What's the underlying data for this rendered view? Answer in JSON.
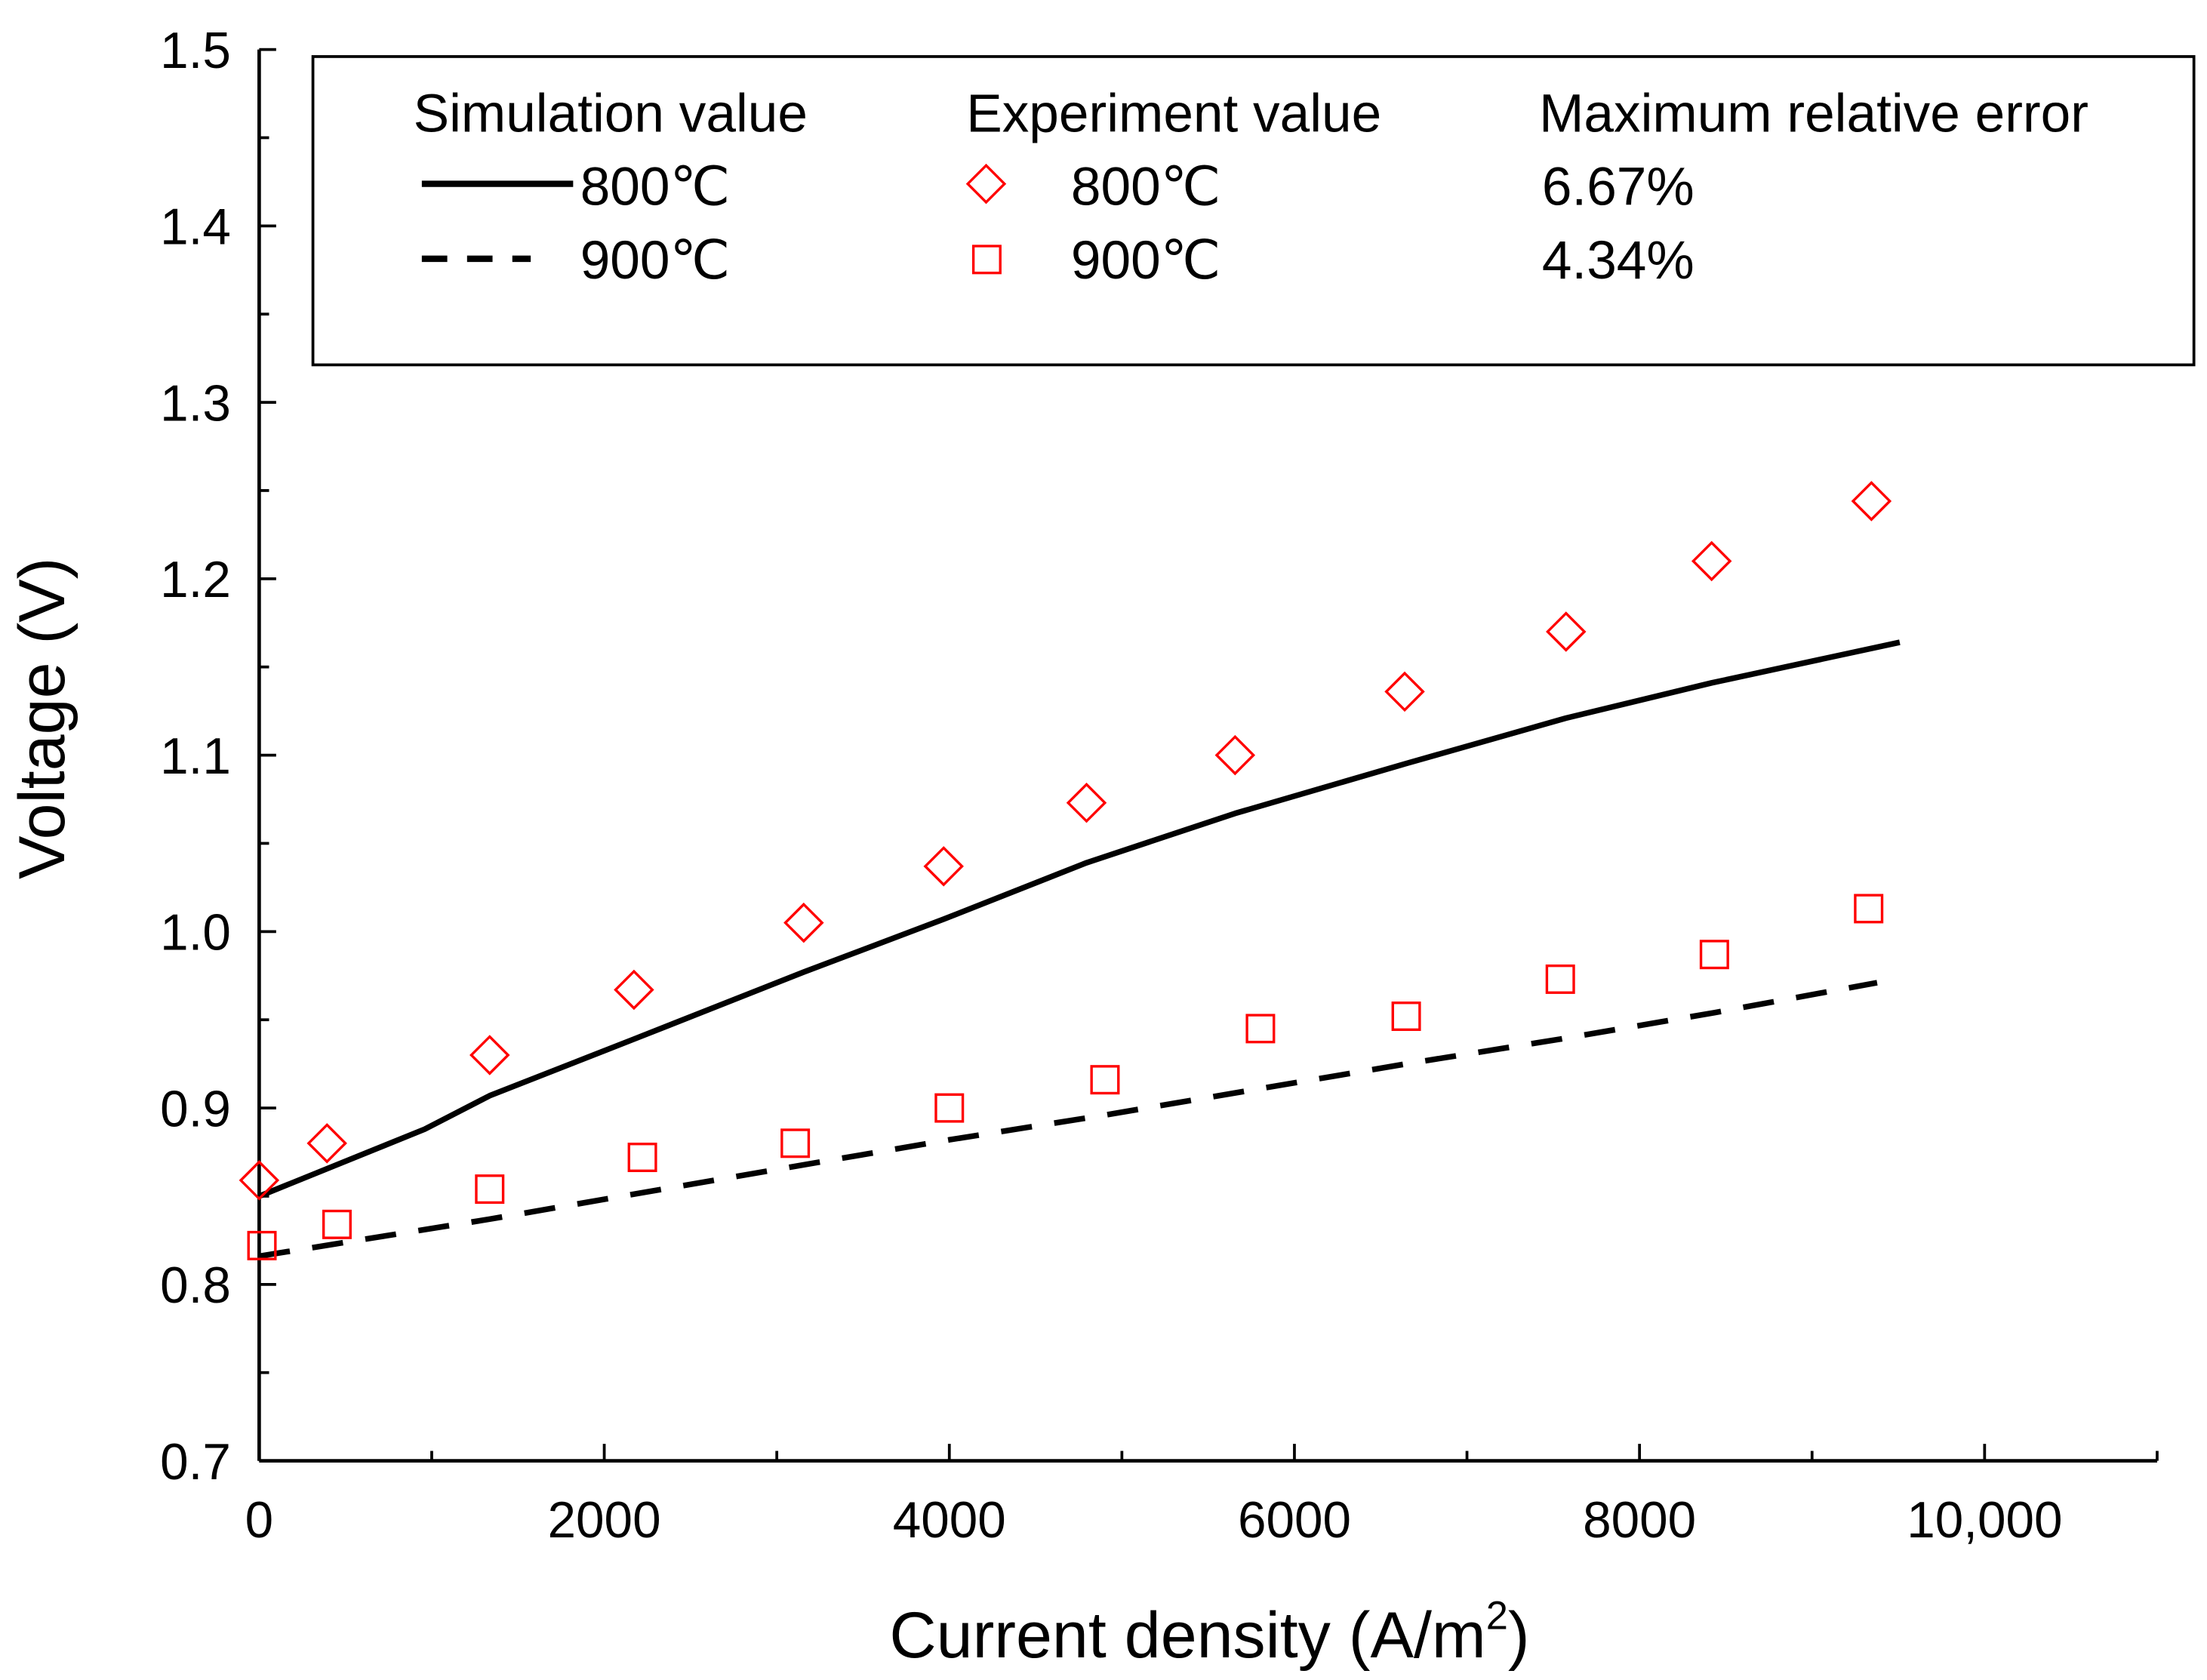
{
  "chart_data": {
    "type": "line",
    "title": "",
    "xlabel": "Current density (A/m",
    "xlabel_sup": "2",
    "xlabel_end": ")",
    "ylabel": "Voltage (V)",
    "xlim": [
      0,
      11000
    ],
    "ylim": [
      0.7,
      1.5
    ],
    "x_ticks": [
      0,
      2000,
      4000,
      6000,
      8000,
      10000
    ],
    "x_tick_labels": [
      "0",
      "2000",
      "4000",
      "6000",
      "8000",
      "10,000"
    ],
    "y_ticks": [
      0.7,
      0.8,
      0.9,
      1.0,
      1.1,
      1.2,
      1.3,
      1.4,
      1.5
    ],
    "y_tick_labels": [
      "0.7",
      "0.8",
      "0.9",
      "1.0",
      "1.1",
      "1.2",
      "1.3",
      "1.4",
      "1.5"
    ],
    "grid": false,
    "legend_placement": "top",
    "legend": {
      "col1_header": "Simulation value",
      "col2_header": "Experiment value",
      "col3_header": "Maximum relative error",
      "sim_800_label": "800℃",
      "sim_900_label": "900℃",
      "exp_800_label": "800℃",
      "exp_900_label": "900℃",
      "err_800": "6.67%",
      "err_900": "4.34%"
    },
    "series": [
      {
        "name": "Simulation 800℃",
        "kind": "line",
        "style": "solid",
        "color": "#000000",
        "x": [
          0,
          959,
          1336,
          2172,
          3156,
          3967,
          4795,
          5656,
          6639,
          7574,
          8418,
          9508
        ],
        "y": [
          0.85,
          0.888,
          0.907,
          0.939,
          0.977,
          1.007,
          1.039,
          1.067,
          1.095,
          1.121,
          1.141,
          1.164
        ]
      },
      {
        "name": "Simulation 900℃",
        "kind": "line",
        "style": "dashed",
        "color": "#000000",
        "x": [
          0,
          1336,
          3107,
          4000,
          4902,
          5803,
          6648,
          7541,
          8434,
          9377
        ],
        "y": [
          0.816,
          0.837,
          0.867,
          0.882,
          0.896,
          0.911,
          0.925,
          0.939,
          0.954,
          0.971
        ]
      },
      {
        "name": "Experiment 800℃",
        "kind": "scatter",
        "marker": "diamond",
        "color": "#ff0000",
        "x": [
          0,
          393,
          1336,
          2172,
          3156,
          3967,
          4795,
          5656,
          6639,
          7574,
          8418,
          9344
        ],
        "y": [
          0.859,
          0.88,
          0.93,
          0.967,
          1.005,
          1.037,
          1.073,
          1.1,
          1.136,
          1.17,
          1.21,
          1.244
        ]
      },
      {
        "name": "Experiment 900℃",
        "kind": "scatter",
        "marker": "square",
        "color": "#ff0000",
        "x": [
          16,
          451,
          1336,
          2221,
          3107,
          4000,
          4902,
          5803,
          6648,
          7541,
          8434,
          9328
        ],
        "y": [
          0.822,
          0.834,
          0.854,
          0.872,
          0.88,
          0.9,
          0.916,
          0.945,
          0.952,
          0.973,
          0.987,
          1.013
        ]
      }
    ]
  }
}
